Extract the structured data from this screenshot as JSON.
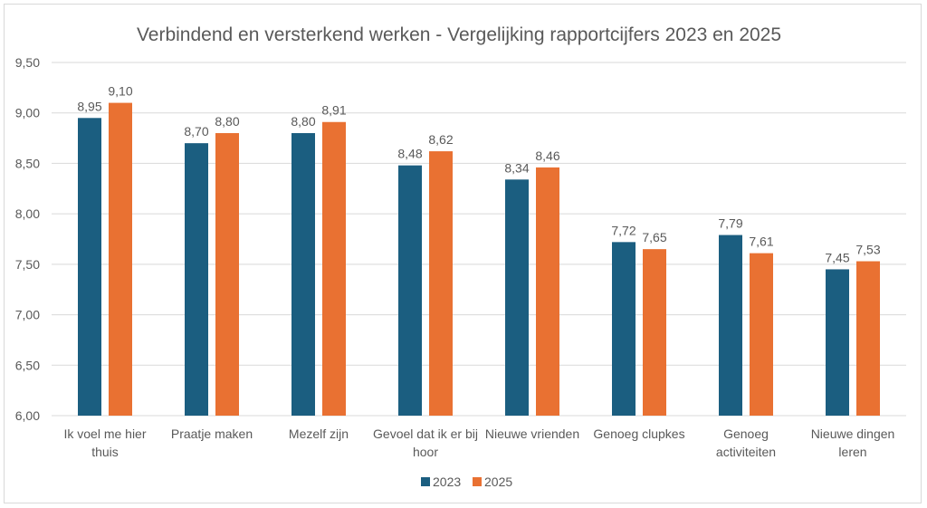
{
  "chart_data": {
    "type": "bar",
    "title": "Verbindend en versterkend werken - Vergelijking rapportcijfers 2023 en 2025",
    "xlabel": "",
    "ylabel": "",
    "categories": [
      [
        "Ik voel me hier",
        "thuis"
      ],
      [
        "Praatje maken"
      ],
      [
        "Mezelf zijn"
      ],
      [
        "Gevoel dat ik er bij",
        "hoor"
      ],
      [
        "Nieuwe vrienden"
      ],
      [
        "Genoeg clupkes"
      ],
      [
        "Genoeg",
        "activiteiten"
      ],
      [
        "Nieuwe dingen",
        "leren"
      ]
    ],
    "series": [
      {
        "name": "2023",
        "color": "#1B5E80",
        "values": [
          8.95,
          8.7,
          8.8,
          8.48,
          8.34,
          7.72,
          7.79,
          7.45
        ],
        "labels": [
          "8,95",
          "8,70",
          "8,80",
          "8,48",
          "8,34",
          "7,72",
          "7,79",
          "7,45"
        ]
      },
      {
        "name": "2025",
        "color": "#E97132",
        "values": [
          9.1,
          8.8,
          8.91,
          8.62,
          8.46,
          7.65,
          7.61,
          7.53
        ],
        "labels": [
          "9,10",
          "8,80",
          "8,91",
          "8,62",
          "8,46",
          "7,65",
          "7,61",
          "7,53"
        ]
      }
    ],
    "ylim": [
      6.0,
      9.5
    ],
    "yticks": [
      "6,00",
      "6,50",
      "7,00",
      "7,50",
      "8,00",
      "8,50",
      "9,00",
      "9,50"
    ],
    "grid": true,
    "legend": "bottom"
  }
}
